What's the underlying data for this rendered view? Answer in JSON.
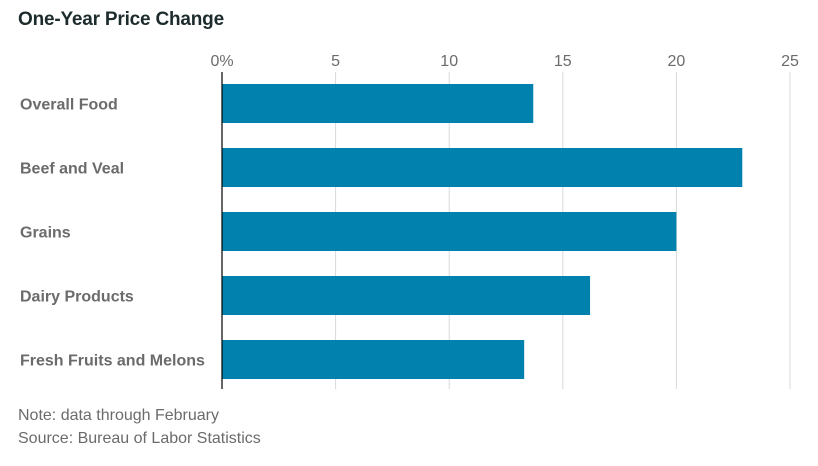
{
  "chart_data": {
    "type": "bar",
    "orientation": "horizontal",
    "title": "One-Year Price Change",
    "categories": [
      "Overall Food",
      "Beef and Veal",
      "Grains",
      "Dairy Products",
      "Fresh Fruits and Melons"
    ],
    "values": [
      13.7,
      22.9,
      20.0,
      16.2,
      13.3
    ],
    "xlim": [
      0,
      25
    ],
    "xticks": [
      0,
      5,
      10,
      15,
      20,
      25
    ],
    "xtick_labels": [
      "0%",
      "5",
      "10",
      "15",
      "20",
      "25"
    ],
    "xaxis_position": "top",
    "grid": true,
    "bar_color": "#0182ae",
    "grid_color": "#d9d9d9",
    "axis_color": "#000000"
  },
  "notes": {
    "note": "Note: data through February",
    "source": "Source: Bureau of Labor Statistics"
  }
}
